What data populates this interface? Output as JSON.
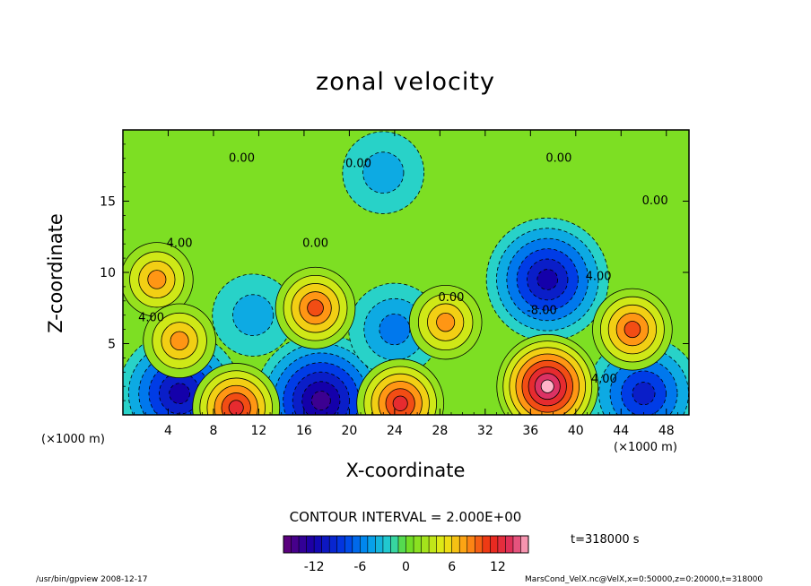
{
  "chart_data": {
    "type": "heatmap",
    "title": "zonal velocity",
    "xlabel": "X-coordinate",
    "ylabel": "Z-coordinate",
    "x_unit_left": "(×1000 m)",
    "x_unit_right": "(×1000 m)",
    "xlim": [
      0,
      50
    ],
    "ylim": [
      0,
      20
    ],
    "x_ticks": [
      4,
      8,
      12,
      16,
      20,
      24,
      28,
      32,
      36,
      40,
      44,
      48
    ],
    "y_ticks": [
      5,
      10,
      15
    ],
    "contour_interval_text": "CONTOUR INTERVAL = 2.000E+00",
    "time_text": "t=318000 s",
    "colorbar": {
      "min": -16,
      "max": 16,
      "ticks": [
        -12,
        -6,
        0,
        6,
        12
      ]
    },
    "contour_labels": [
      {
        "text": "0.00",
        "x": 10.5,
        "y": 18.0
      },
      {
        "text": "0.00",
        "x": 20.8,
        "y": 17.6
      },
      {
        "text": "0.00",
        "x": 38.5,
        "y": 18.0
      },
      {
        "text": "0.00",
        "x": 47.0,
        "y": 15.0
      },
      {
        "text": "4.00",
        "x": 5.0,
        "y": 12.0
      },
      {
        "text": "0.00",
        "x": 17.0,
        "y": 12.0
      },
      {
        "text": "4.00",
        "x": 2.5,
        "y": 6.8
      },
      {
        "text": "0.00",
        "x": 29.0,
        "y": 8.2
      },
      {
        "text": "-8.00",
        "x": 37.0,
        "y": 7.3
      },
      {
        "text": "4.00",
        "x": 42.0,
        "y": 9.7
      },
      {
        "text": "4.00",
        "x": 42.5,
        "y": 2.5
      }
    ],
    "features": [
      {
        "kind": "negative",
        "x": 37.5,
        "y": 9.5,
        "value": -12
      },
      {
        "kind": "negative",
        "x": 5.0,
        "y": 1.5,
        "value": -12
      },
      {
        "kind": "negative",
        "x": 17.5,
        "y": 1.0,
        "value": -14
      },
      {
        "kind": "negative",
        "x": 46.0,
        "y": 1.5,
        "value": -10
      },
      {
        "kind": "negative",
        "x": 23.0,
        "y": 17.0,
        "value": -4
      },
      {
        "kind": "negative",
        "x": 24.0,
        "y": 6.0,
        "value": -6
      },
      {
        "kind": "negative",
        "x": 11.5,
        "y": 7.0,
        "value": -4
      },
      {
        "kind": "positive",
        "x": 17.0,
        "y": 7.5,
        "value": 10
      },
      {
        "kind": "positive",
        "x": 3.0,
        "y": 9.5,
        "value": 8
      },
      {
        "kind": "positive",
        "x": 5.0,
        "y": 5.2,
        "value": 8
      },
      {
        "kind": "positive",
        "x": 37.5,
        "y": 2.0,
        "value": 16
      },
      {
        "kind": "positive",
        "x": 45.0,
        "y": 6.0,
        "value": 10
      },
      {
        "kind": "positive",
        "x": 10.0,
        "y": 0.5,
        "value": 12
      },
      {
        "kind": "positive",
        "x": 24.5,
        "y": 0.8,
        "value": 12
      },
      {
        "kind": "positive",
        "x": 28.5,
        "y": 6.5,
        "value": 8
      }
    ]
  },
  "footer": {
    "left": "/usr/bin/gpview   2008-12-17",
    "right": "MarsCond_VelX.nc@VelX,x=0:50000,z=0:20000,t=318000"
  }
}
